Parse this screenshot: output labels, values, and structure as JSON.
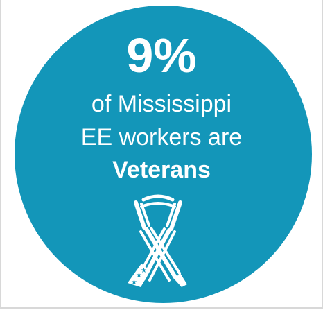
{
  "theme": {
    "accent": "#1396b9",
    "text_color": "#ffffff"
  },
  "infographic": {
    "stat": "9%",
    "line1": "of Mississippi",
    "line2": "EE workers are",
    "line3": "Veterans",
    "icon": "ribbon-icon"
  }
}
